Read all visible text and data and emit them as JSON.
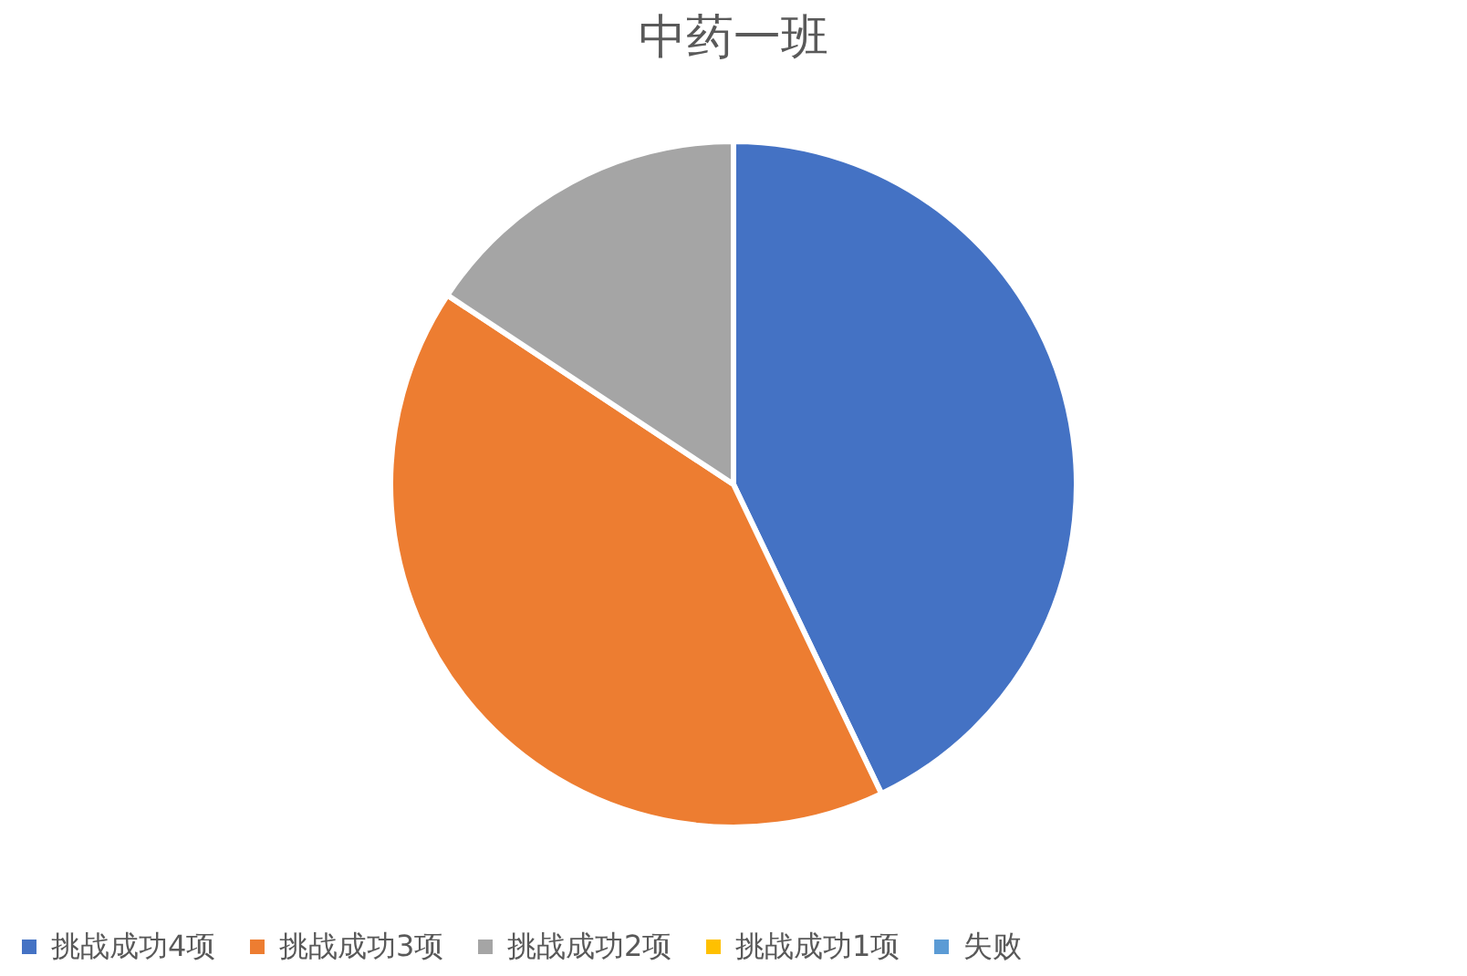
{
  "chart_data": {
    "type": "pie",
    "title": "中药一班",
    "categories": [
      "挑战成功4项",
      "挑战成功3项",
      "挑战成功2项",
      "挑战成功1项",
      "失败"
    ],
    "values": [
      42.9,
      41.4,
      15.7,
      0,
      0
    ],
    "colors": [
      "#4472c4",
      "#ed7d31",
      "#a5a5a5",
      "#ffc000",
      "#5b9bd5"
    ],
    "legend": "bottom"
  }
}
